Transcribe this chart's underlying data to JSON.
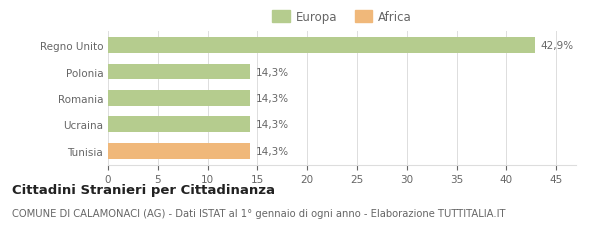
{
  "categories": [
    "Tunisia",
    "Ucraina",
    "Romania",
    "Polonia",
    "Regno Unito"
  ],
  "values": [
    14.3,
    14.3,
    14.3,
    14.3,
    42.9
  ],
  "bar_colors": [
    "#f0b87a",
    "#b5cc8e",
    "#b5cc8e",
    "#b5cc8e",
    "#b5cc8e"
  ],
  "value_labels": [
    "14,3%",
    "14,3%",
    "14,3%",
    "14,3%",
    "42,9%"
  ],
  "legend_entries": [
    {
      "label": "Europa",
      "color": "#b5cc8e"
    },
    {
      "label": "Africa",
      "color": "#f0b87a"
    }
  ],
  "xlim": [
    0,
    47
  ],
  "xticks": [
    0,
    5,
    10,
    15,
    20,
    25,
    30,
    35,
    40,
    45
  ],
  "title_bold": "Cittadini Stranieri per Cittadinanza",
  "subtitle": "COMUNE DI CALAMONACI (AG) - Dati ISTAT al 1° gennaio di ogni anno - Elaborazione TUTTITALIA.IT",
  "background_color": "#ffffff",
  "bar_edge_color": "none",
  "grid_color": "#dddddd",
  "text_color": "#666666",
  "title_color": "#222222",
  "subtitle_color": "#666666",
  "title_fontsize": 9.5,
  "subtitle_fontsize": 7.2,
  "label_fontsize": 7.5,
  "tick_fontsize": 7.5,
  "legend_fontsize": 8.5
}
